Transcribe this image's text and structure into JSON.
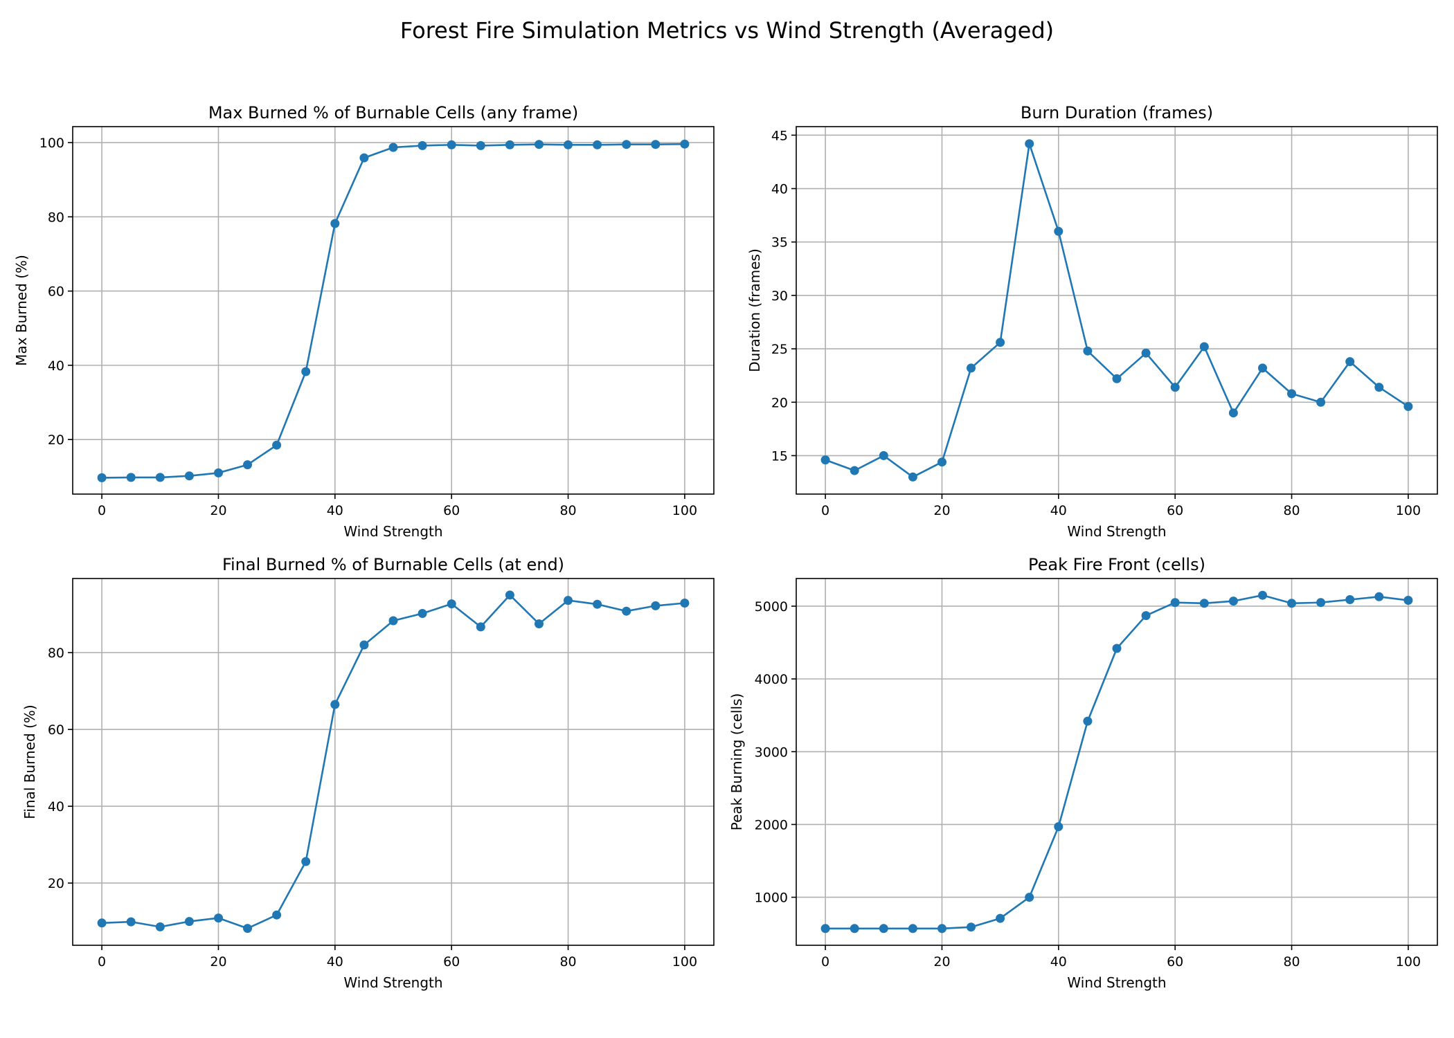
{
  "figure": {
    "title": "Forest Fire Simulation Metrics vs Wind Strength (Averaged)"
  },
  "chart_data": [
    {
      "type": "line",
      "title": "Max Burned % of Burnable Cells (any frame)",
      "xlabel": "Wind Strength",
      "ylabel": "Max Burned (%)",
      "x": [
        0,
        5,
        10,
        15,
        20,
        25,
        30,
        35,
        40,
        45,
        50,
        55,
        60,
        65,
        70,
        75,
        80,
        85,
        90,
        95,
        100
      ],
      "values": [
        9.7,
        9.8,
        9.8,
        10.2,
        11.0,
        13.2,
        18.5,
        38.3,
        78.2,
        95.9,
        98.7,
        99.2,
        99.4,
        99.2,
        99.4,
        99.5,
        99.4,
        99.4,
        99.5,
        99.5,
        99.6
      ],
      "xlim": [
        -5,
        105
      ],
      "ylim": [
        5.3,
        104.3
      ],
      "xticks": [
        0,
        20,
        40,
        60,
        80,
        100
      ],
      "yticks": [
        20,
        40,
        60,
        80,
        100
      ],
      "grid": true,
      "color": "#1f77b4"
    },
    {
      "type": "line",
      "title": "Burn Duration (frames)",
      "xlabel": "Wind Strength",
      "ylabel": "Duration (frames)",
      "x": [
        0,
        5,
        10,
        15,
        20,
        25,
        30,
        35,
        40,
        45,
        50,
        55,
        60,
        65,
        70,
        75,
        80,
        85,
        90,
        95,
        100
      ],
      "values": [
        14.6,
        13.6,
        15.0,
        13.0,
        14.4,
        23.2,
        25.6,
        44.2,
        36.0,
        24.8,
        22.2,
        24.6,
        21.4,
        25.2,
        19.0,
        23.2,
        20.8,
        20.0,
        23.8,
        21.4,
        19.6
      ],
      "xlim": [
        -5,
        105
      ],
      "ylim": [
        11.4,
        45.8
      ],
      "xticks": [
        0,
        20,
        40,
        60,
        80,
        100
      ],
      "yticks": [
        15,
        20,
        25,
        30,
        35,
        40,
        45
      ],
      "grid": true,
      "color": "#1f77b4"
    },
    {
      "type": "line",
      "title": "Final Burned % of Burnable Cells (at end)",
      "xlabel": "Wind Strength",
      "ylabel": "Final Burned (%)",
      "x": [
        0,
        5,
        10,
        15,
        20,
        25,
        30,
        35,
        40,
        45,
        50,
        55,
        60,
        65,
        70,
        75,
        80,
        85,
        90,
        95,
        100
      ],
      "values": [
        9.6,
        9.9,
        8.6,
        10.0,
        10.9,
        8.2,
        11.7,
        25.6,
        66.5,
        82.0,
        88.3,
        90.2,
        92.7,
        86.7,
        95.0,
        87.5,
        93.6,
        92.6,
        90.8,
        92.2,
        92.9
      ],
      "xlim": [
        -5,
        105
      ],
      "ylim": [
        3.8,
        99.3
      ],
      "xticks": [
        0,
        20,
        40,
        60,
        80,
        100
      ],
      "yticks": [
        20,
        40,
        60,
        80
      ],
      "grid": true,
      "color": "#1f77b4"
    },
    {
      "type": "line",
      "title": "Peak Fire Front (cells)",
      "xlabel": "Wind Strength",
      "ylabel": "Peak Burning (cells)",
      "x": [
        0,
        5,
        10,
        15,
        20,
        25,
        30,
        35,
        40,
        45,
        50,
        55,
        60,
        65,
        70,
        75,
        80,
        85,
        90,
        95,
        100
      ],
      "values": [
        570,
        570,
        570,
        570,
        570,
        590,
        710,
        1000,
        1970,
        3420,
        4420,
        4870,
        5050,
        5040,
        5070,
        5150,
        5040,
        5050,
        5090,
        5130,
        5080
      ],
      "xlim": [
        -5,
        105
      ],
      "ylim": [
        340,
        5380
      ],
      "xticks": [
        0,
        20,
        40,
        60,
        80,
        100
      ],
      "yticks": [
        1000,
        2000,
        3000,
        4000,
        5000
      ],
      "grid": true,
      "color": "#1f77b4"
    }
  ]
}
